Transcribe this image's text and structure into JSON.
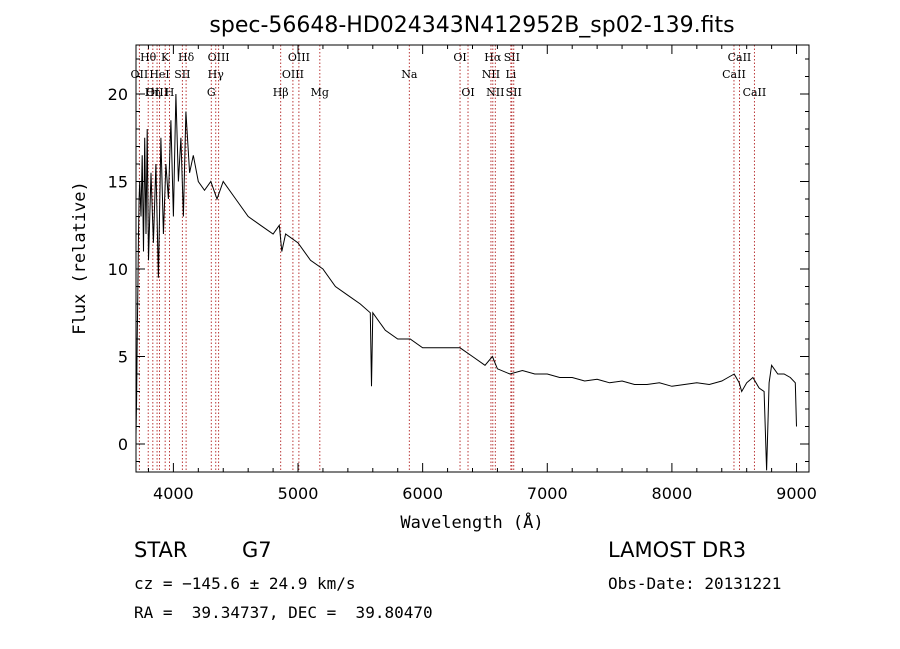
{
  "chart_data": {
    "type": "line",
    "title": "spec-56648-HD024343N412952B_sp02-139.fits",
    "xlabel": "Wavelength (Å)",
    "ylabel": "Flux (relative)",
    "xlim": [
      3700,
      9100
    ],
    "ylim": [
      -1.6,
      22.8
    ],
    "xticks": [
      4000,
      5000,
      6000,
      7000,
      8000,
      9000
    ],
    "xtick_labels": [
      "4000",
      "5000",
      "6000",
      "7000",
      "8000",
      "9000"
    ],
    "yticks": [
      0,
      5,
      10,
      15,
      20
    ],
    "ytick_labels": [
      "0",
      "5",
      "10",
      "15",
      "20"
    ],
    "series": [
      {
        "name": "spectrum",
        "x": [
          3700,
          3705,
          3710,
          3715,
          3720,
          3725,
          3730,
          3740,
          3750,
          3760,
          3770,
          3780,
          3790,
          3800,
          3820,
          3840,
          3860,
          3880,
          3900,
          3920,
          3940,
          3960,
          3980,
          4000,
          4020,
          4040,
          4060,
          4080,
          4100,
          4130,
          4160,
          4200,
          4250,
          4300,
          4350,
          4400,
          4500,
          4600,
          4700,
          4800,
          4850,
          4870,
          4900,
          5000,
          5100,
          5200,
          5300,
          5400,
          5500,
          5580,
          5590,
          5600,
          5700,
          5800,
          5900,
          6000,
          6100,
          6200,
          6300,
          6400,
          6500,
          6560,
          6600,
          6700,
          6800,
          6900,
          7000,
          7100,
          7200,
          7300,
          7400,
          7500,
          7600,
          7700,
          7800,
          7900,
          8000,
          8100,
          8200,
          8300,
          8400,
          8450,
          8500,
          8540,
          8560,
          8600,
          8650,
          8700,
          8740,
          8760,
          8780,
          8800,
          8850,
          8900,
          8950,
          8990,
          9000
        ],
        "y": [
          0.5,
          2.5,
          6.0,
          9.0,
          12.0,
          14.0,
          15.0,
          13.0,
          16.5,
          11.0,
          17.5,
          12.0,
          18.0,
          10.5,
          15.5,
          11.5,
          16.0,
          9.5,
          17.5,
          12.0,
          16.0,
          14.0,
          18.5,
          13.0,
          20.0,
          15.0,
          17.5,
          13.0,
          19.0,
          15.5,
          16.5,
          15.0,
          14.5,
          15.0,
          14.0,
          15.0,
          14.0,
          13.0,
          12.5,
          12.0,
          12.5,
          11.0,
          12.0,
          11.5,
          10.5,
          10.0,
          9.0,
          8.5,
          8.0,
          7.5,
          3.3,
          7.5,
          6.5,
          6.0,
          6.0,
          5.5,
          5.5,
          5.5,
          5.5,
          5.0,
          4.5,
          5.0,
          4.3,
          4.0,
          4.2,
          4.0,
          4.0,
          3.8,
          3.8,
          3.6,
          3.7,
          3.5,
          3.6,
          3.4,
          3.4,
          3.5,
          3.3,
          3.4,
          3.5,
          3.4,
          3.6,
          3.8,
          4.0,
          3.5,
          3.0,
          3.5,
          3.8,
          3.2,
          3.0,
          -1.5,
          3.5,
          4.5,
          4.0,
          4.0,
          3.8,
          3.5,
          1.0
        ]
      }
    ],
    "lines": [
      {
        "name": "Hθ",
        "wave": 3798,
        "row": 1
      },
      {
        "name": "OII",
        "wave": 3727,
        "row": 2
      },
      {
        "name": "OIII",
        "wave": 3869,
        "row": 3
      },
      {
        "name": "Hη",
        "wave": 3835,
        "row": 3
      },
      {
        "name": "K",
        "wave": 3934,
        "row": 1
      },
      {
        "name": "HeI",
        "wave": 3889,
        "row": 2
      },
      {
        "name": "H",
        "wave": 3969,
        "row": 3
      },
      {
        "name": "Hδ",
        "wave": 4102,
        "row": 1
      },
      {
        "name": "SII",
        "wave": 4072,
        "row": 2
      },
      {
        "name": "OIII",
        "wave": 4363,
        "row": 1
      },
      {
        "name": "Hγ",
        "wave": 4340,
        "row": 2
      },
      {
        "name": "G",
        "wave": 4304,
        "row": 3
      },
      {
        "name": "Hβ",
        "wave": 4861,
        "row": 3
      },
      {
        "name": "OIII",
        "wave": 5007,
        "row": 1
      },
      {
        "name": "OIII",
        "wave": 4959,
        "row": 2
      },
      {
        "name": "Mg",
        "wave": 5175,
        "row": 3
      },
      {
        "name": "Na",
        "wave": 5893,
        "row": 2
      },
      {
        "name": "OI",
        "wave": 6300,
        "row": 1
      },
      {
        "name": "OI",
        "wave": 6364,
        "row": 3
      },
      {
        "name": "Hα",
        "wave": 6563,
        "row": 1
      },
      {
        "name": "SII",
        "wave": 6716,
        "row": 1
      },
      {
        "name": "NII",
        "wave": 6548,
        "row": 2
      },
      {
        "name": "Li",
        "wave": 6708,
        "row": 2
      },
      {
        "name": "NII",
        "wave": 6583,
        "row": 3
      },
      {
        "name": "SII",
        "wave": 6731,
        "row": 3
      },
      {
        "name": "CaII",
        "wave": 8542,
        "row": 1
      },
      {
        "name": "CaII",
        "wave": 8498,
        "row": 2
      },
      {
        "name": "CaII",
        "wave": 8662,
        "row": 3
      }
    ],
    "line_color": "#b22222"
  },
  "info": {
    "class": "STAR",
    "subclass": "G7",
    "survey": "LAMOST DR3",
    "cz": "cz = −145.6 ± 24.9 km/s",
    "obs_date": "Obs-Date: 20131221",
    "coords": "RA =  39.34737, DEC =  39.80470"
  }
}
